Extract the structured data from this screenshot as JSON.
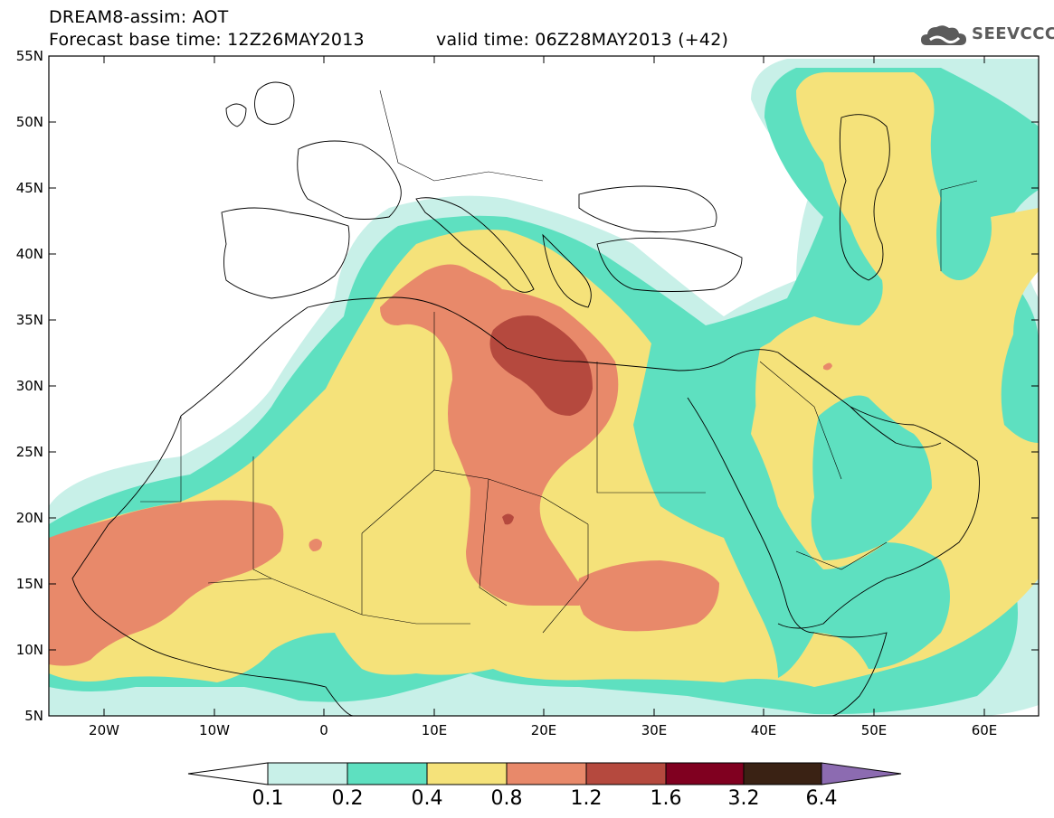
{
  "header": {
    "title": "DREAM8-assim: AOT",
    "forecast_base": "Forecast base time: 12Z26MAY2013",
    "valid_time": "valid time: 06Z28MAY2013 (+42)",
    "logo_text": "SEEVCCC",
    "logo_icon": "cloud-logo-icon"
  },
  "axes": {
    "lat_labels": [
      "55N",
      "50N",
      "45N",
      "40N",
      "35N",
      "30N",
      "25N",
      "20N",
      "15N",
      "10N",
      "5N"
    ],
    "lon_labels": [
      "20W",
      "10W",
      "0",
      "10E",
      "20E",
      "30E",
      "40E",
      "50E",
      "60E"
    ]
  },
  "colorbar": {
    "labels": [
      "0.1",
      "0.2",
      "0.4",
      "0.8",
      "1.2",
      "1.6",
      "3.2",
      "6.4"
    ],
    "colors": [
      "#ffffff",
      "#c8f0e8",
      "#5ee0c0",
      "#f5e27a",
      "#e8896a",
      "#b5493e",
      "#800020",
      "#3a2214",
      "#8c6bb1"
    ]
  },
  "map": {
    "extent": {
      "lon": [
        -25,
        65
      ],
      "lat": [
        5,
        55
      ]
    },
    "variable": "Aerosol Optical Thickness"
  }
}
